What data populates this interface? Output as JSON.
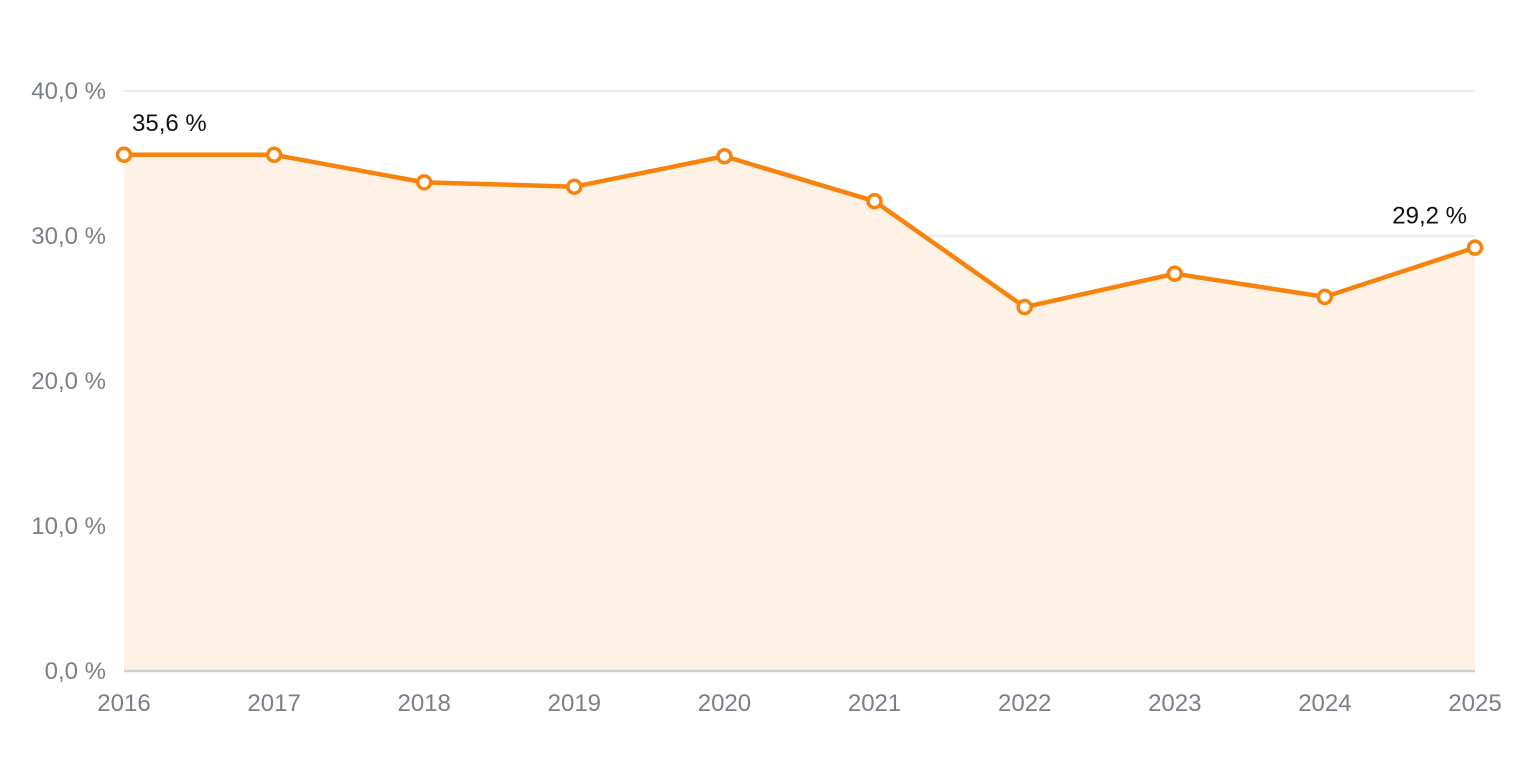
{
  "colors": {
    "line": "#f7820c",
    "area": "#fef2e6",
    "grid": "#e5e5e5",
    "tick_text": "#7a7f87",
    "label_text": "#111111"
  },
  "chart_data": {
    "type": "area",
    "categories": [
      "2016",
      "2017",
      "2018",
      "2019",
      "2020",
      "2021",
      "2022",
      "2023",
      "2024",
      "2025"
    ],
    "values": [
      35.6,
      35.6,
      33.7,
      33.4,
      35.5,
      32.4,
      25.1,
      27.4,
      25.8,
      29.2
    ],
    "ylim": [
      0,
      40
    ],
    "y_ticks": [
      {
        "value": 0,
        "label": "0,0 %"
      },
      {
        "value": 10,
        "label": "10,0 %"
      },
      {
        "value": 20,
        "label": "20,0 %"
      },
      {
        "value": 30,
        "label": "30,0 %"
      },
      {
        "value": 40,
        "label": "40,0 %"
      }
    ],
    "annotations": [
      {
        "index": 0,
        "label": "35,6 %"
      },
      {
        "index": 9,
        "label": "29,2 %"
      }
    ],
    "grid": true,
    "legend": "none"
  }
}
